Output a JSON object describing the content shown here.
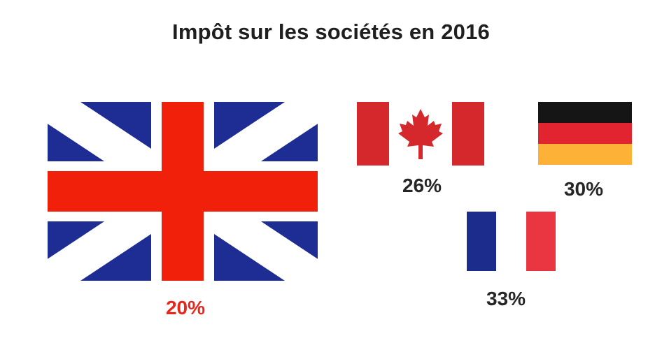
{
  "title": "Impôt sur les sociétés en 2016",
  "colors": {
    "uk_blue": "#1e2d93",
    "uk_red": "#f1200a",
    "canada_red": "#d5282c",
    "germany_black": "#151515",
    "germany_red": "#e12430",
    "germany_gold": "#fdb137",
    "france_blue": "#1b2c8c",
    "france_red": "#ea3641",
    "highlight_label": "#e8261d",
    "label": "#262626"
  },
  "chart_data": {
    "type": "bar",
    "title": "Impôt sur les sociétés en 2016",
    "categories": [
      "Royaume-Uni",
      "Canada",
      "Allemagne",
      "France"
    ],
    "values": [
      20,
      26,
      30,
      33
    ],
    "unit": "%",
    "labels": [
      "20%",
      "26%",
      "30%",
      "33%"
    ],
    "highlighted_category": "Royaume-Uni",
    "marks": [
      "uk-flag-icon",
      "canada-flag-icon",
      "germany-flag-icon",
      "france-flag-icon"
    ]
  }
}
